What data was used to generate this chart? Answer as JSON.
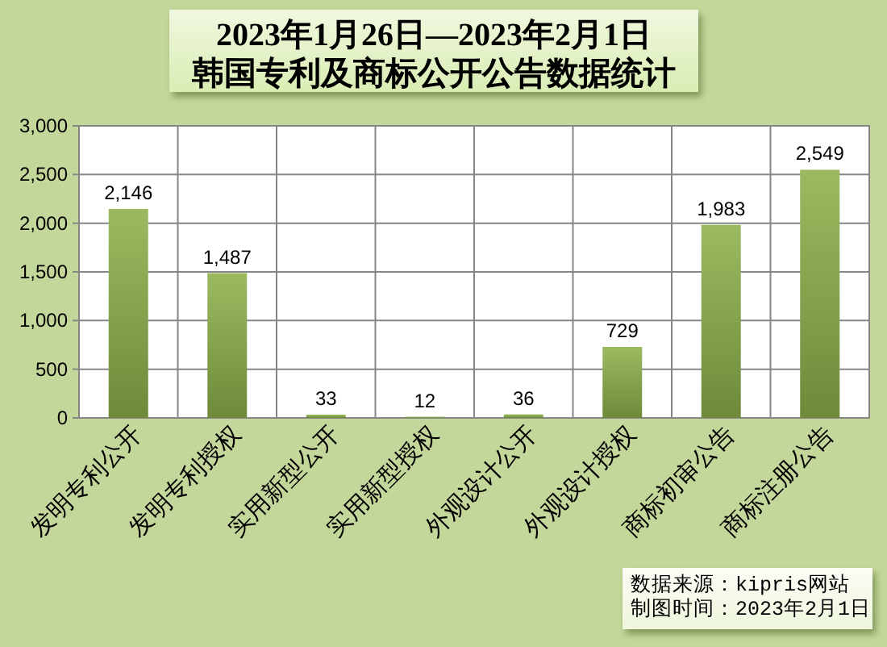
{
  "chart_data": {
    "type": "bar",
    "title": "2023年1月26日—2023年2月1日",
    "subtitle": "韩国专利及商标公开公告数据统计",
    "categories": [
      "发明专利公开",
      "发明专利授权",
      "实用新型公开",
      "实用新型授权",
      "外观设计公开",
      "外观设计授权",
      "商标初审公告",
      "商标注册公告"
    ],
    "values": [
      2146,
      1487,
      33,
      12,
      36,
      729,
      1983,
      2549
    ],
    "value_labels": [
      "2,146",
      "1,487",
      "33",
      "12",
      "36",
      "729",
      "1,983",
      "2,549"
    ],
    "color": "#8db14a",
    "ylim": [
      0,
      3000
    ],
    "yticks": [
      0,
      500,
      {
        "value": 1000,
        "label": "1,000"
      },
      {
        "value": 1500,
        "label": "1,500"
      },
      {
        "value": 2000,
        "label": "2,000"
      },
      {
        "value": 2500,
        "label": "2,500"
      },
      {
        "value": 3000,
        "label": "3,000"
      }
    ],
    "grid": true,
    "annotations": [
      "数据来源：kipris网站",
      "制图时间：2023年2月1日"
    ]
  }
}
